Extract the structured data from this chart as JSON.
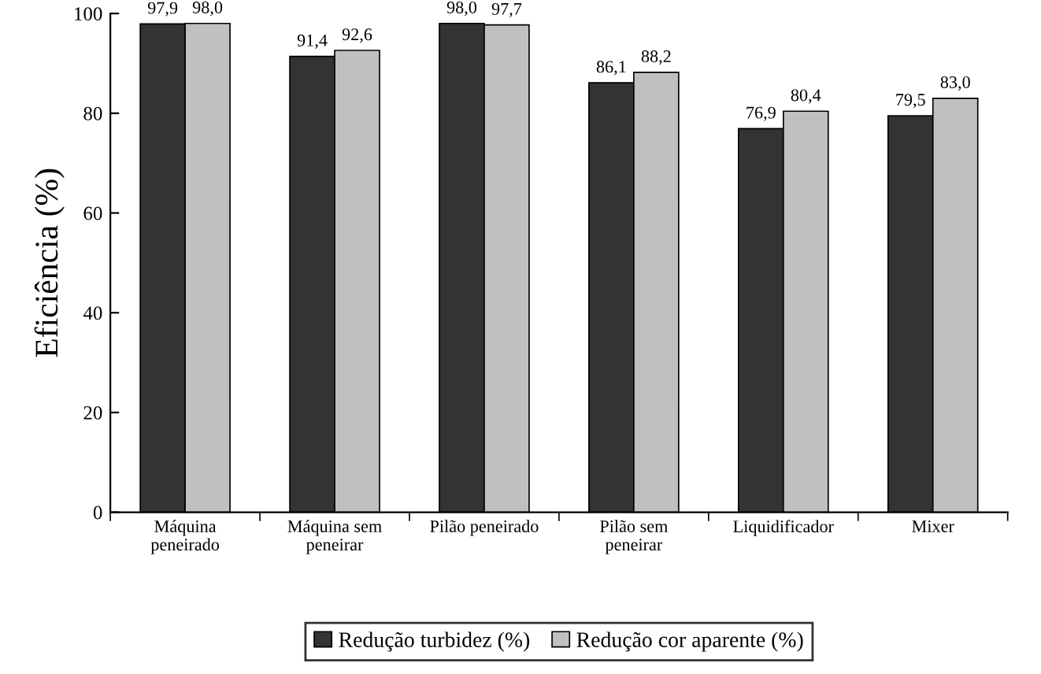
{
  "chart_data": {
    "type": "bar",
    "ylabel": "Eficiência (%)",
    "categories": [
      "Máquina\npeneirado",
      "Máquina sem\npeneirar",
      "Pilão peneirado",
      "Pilão sem\npeneirar",
      "Liquidificador",
      "Mixer"
    ],
    "series": [
      {
        "name": "Redução turbidez (%)",
        "color": "#333333",
        "values": [
          97.9,
          91.4,
          98.0,
          86.1,
          76.9,
          79.5
        ],
        "value_labels": [
          "97,9",
          "91,4",
          "98,0",
          "86,1",
          "76,9",
          "79,5"
        ]
      },
      {
        "name": "Redução cor aparente (%)",
        "color": "#c0c0c0",
        "values": [
          98.0,
          92.6,
          97.7,
          88.2,
          80.4,
          83.0
        ],
        "value_labels": [
          "98,0",
          "92,6",
          "97,7",
          "88,2",
          "80,4",
          "83,0"
        ]
      }
    ],
    "ylim": [
      0,
      100
    ],
    "yticks": [
      0,
      20,
      40,
      60,
      80,
      100
    ],
    "grid": false,
    "legend": "bottom"
  }
}
